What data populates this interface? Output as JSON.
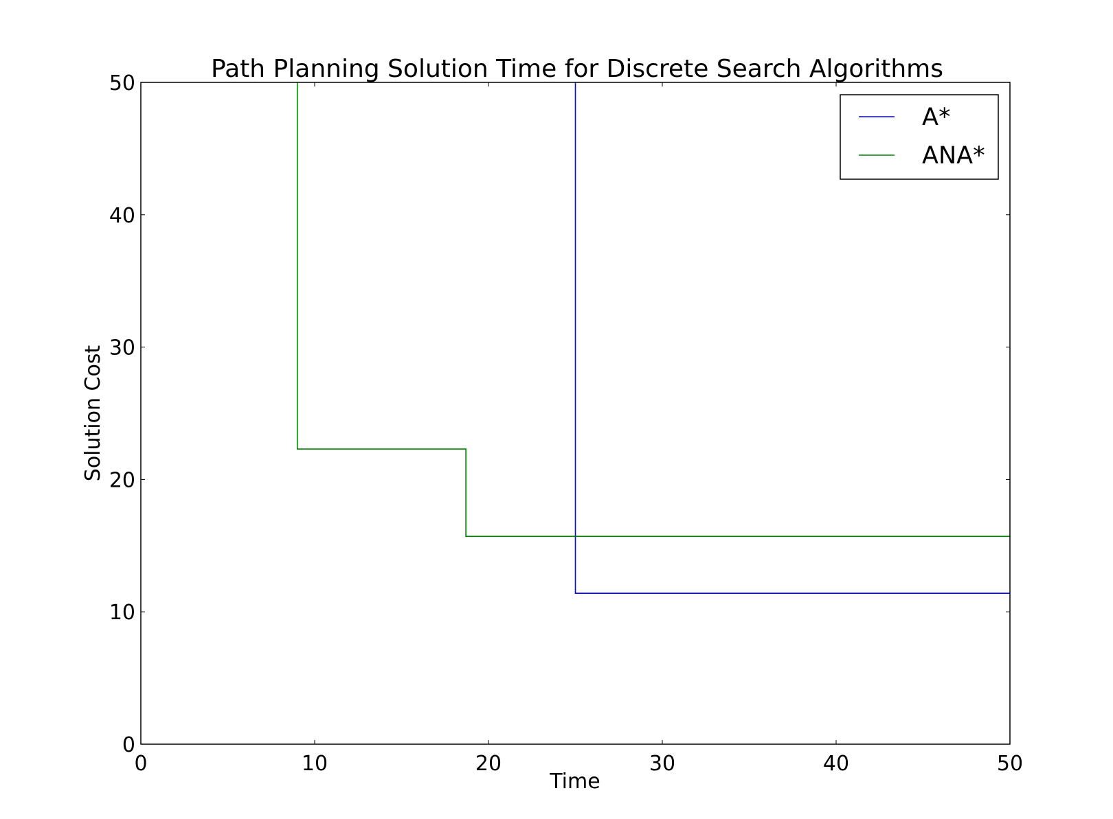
{
  "chart_data": {
    "type": "line",
    "title": "Path Planning Solution Time for Discrete Search Algorithms",
    "xlabel": "Time",
    "ylabel": "Solution Cost",
    "xlim": [
      0,
      50
    ],
    "ylim": [
      0,
      50
    ],
    "xticks": [
      0,
      10,
      20,
      30,
      40,
      50
    ],
    "yticks": [
      0,
      10,
      20,
      30,
      40,
      50
    ],
    "grid": false,
    "legend_position": "top-right",
    "step": true,
    "series": [
      {
        "name": "A*",
        "color": "#0000ff",
        "x": [
          25.0,
          25.0,
          50.0
        ],
        "y": [
          50.0,
          11.4,
          11.4
        ]
      },
      {
        "name": "ANA*",
        "color": "#008000",
        "x": [
          9.0,
          9.0,
          18.7,
          18.7,
          50.0
        ],
        "y": [
          50.0,
          22.3,
          22.3,
          15.7,
          15.7
        ]
      }
    ]
  }
}
